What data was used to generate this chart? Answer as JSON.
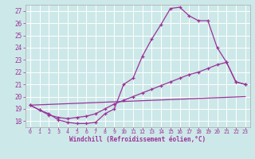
{
  "background_color": "#cde8e8",
  "line_color": "#993399",
  "xlim": [
    -0.5,
    23.5
  ],
  "ylim": [
    17.5,
    27.5
  ],
  "yticks": [
    18,
    19,
    20,
    21,
    22,
    23,
    24,
    25,
    26,
    27
  ],
  "xticks": [
    0,
    1,
    2,
    3,
    4,
    5,
    6,
    7,
    8,
    9,
    10,
    11,
    12,
    13,
    14,
    15,
    16,
    17,
    18,
    19,
    20,
    21,
    22,
    23
  ],
  "xlabel": "Windchill (Refroidissement éolien,°C)",
  "line1_x": [
    0,
    1,
    2,
    3,
    4,
    5,
    6,
    7,
    8,
    9,
    10,
    11,
    12,
    13,
    14,
    15,
    16,
    17,
    18,
    19,
    20,
    21,
    22,
    23
  ],
  "line1_y": [
    19.3,
    18.9,
    18.6,
    18.1,
    17.9,
    17.8,
    17.8,
    17.9,
    18.6,
    19.0,
    21.0,
    21.5,
    23.3,
    24.7,
    25.9,
    27.2,
    27.3,
    26.6,
    26.2,
    26.2,
    24.0,
    22.8,
    21.2,
    21.0
  ],
  "line2_x": [
    0,
    1,
    2,
    3,
    4,
    5,
    6,
    7,
    8,
    9,
    10,
    11,
    12,
    13,
    14,
    15,
    16,
    17,
    18,
    19,
    20,
    21,
    22,
    23
  ],
  "line2_y": [
    19.3,
    18.9,
    18.5,
    18.3,
    18.2,
    18.3,
    18.4,
    18.6,
    19.0,
    19.4,
    19.7,
    20.0,
    20.3,
    20.6,
    20.9,
    21.2,
    21.5,
    21.8,
    22.0,
    22.3,
    22.6,
    22.8,
    21.2,
    21.0
  ],
  "line3_x": [
    0,
    23
  ],
  "line3_y": [
    19.3,
    20.0
  ]
}
